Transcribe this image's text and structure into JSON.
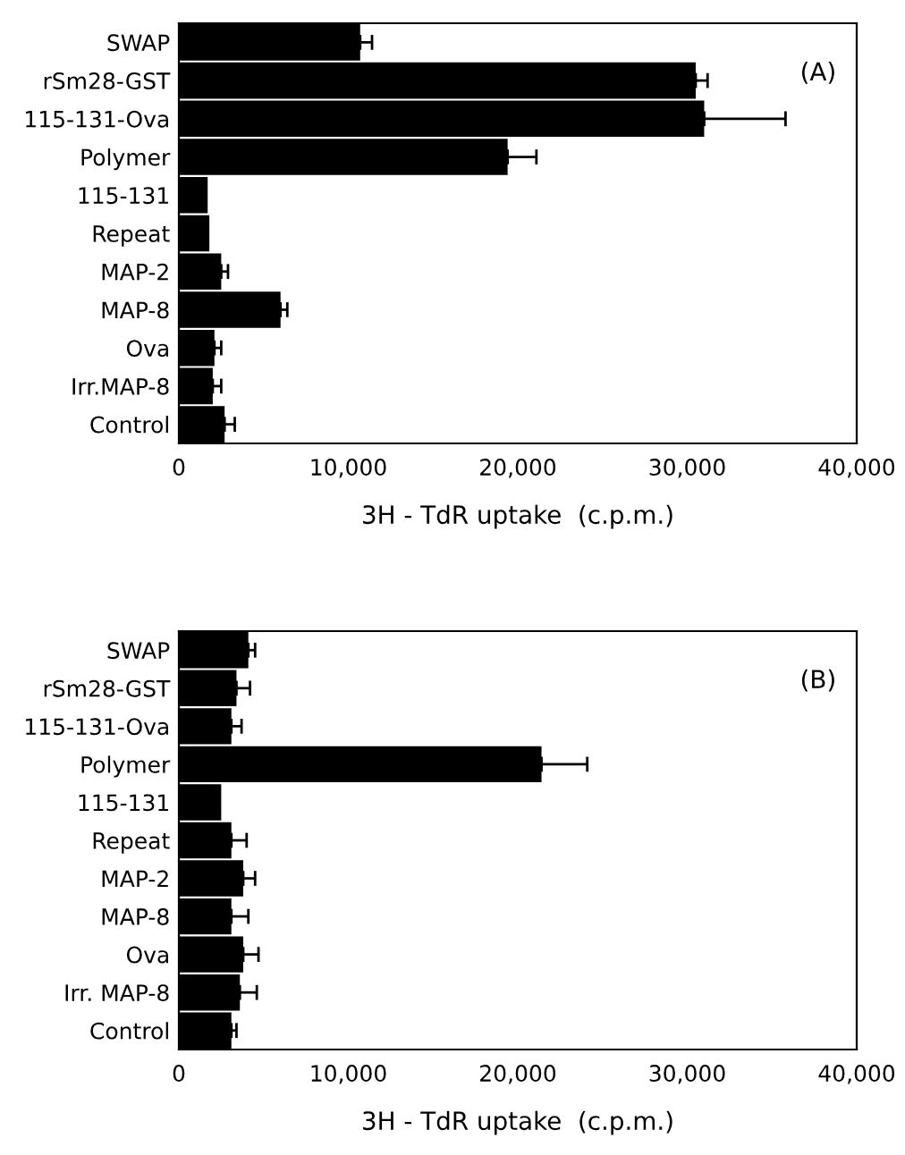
{
  "chart_data": [
    {
      "type": "bar",
      "orientation": "horizontal",
      "categories": [
        "SWAP",
        "rSm28-GST",
        "115-131-Ova",
        "Polymer",
        "115-131",
        "Repeat",
        "MAP-2",
        "MAP-8",
        "Ova",
        "Irr.MAP-8",
        "Control"
      ],
      "values": [
        10700,
        30500,
        31000,
        19400,
        1700,
        1800,
        2500,
        6000,
        2100,
        2000,
        2700
      ],
      "errors": [
        [
          10700,
          11400
        ],
        [
          30500,
          31200
        ],
        [
          31000,
          35800
        ],
        [
          19400,
          21100
        ],
        null,
        null,
        [
          2500,
          2900
        ],
        [
          6000,
          6400
        ],
        [
          2100,
          2500
        ],
        [
          2000,
          2500
        ],
        [
          2700,
          3300
        ]
      ],
      "color": "#000000",
      "xlim": [
        0,
        40000
      ],
      "xticks": [
        0,
        {
          "value": 10000,
          "label": "10,000"
        },
        {
          "value": 20000,
          "label": "20,000"
        },
        {
          "value": 30000,
          "label": "30,000"
        },
        {
          "value": 40000,
          "label": "40,000"
        }
      ],
      "xlabel": "3H - TdR uptake  (c.p.m.)",
      "annotations": [
        "(A)"
      ],
      "grid": false,
      "legend": false
    },
    {
      "type": "bar",
      "orientation": "horizontal",
      "categories": [
        "SWAP",
        "rSm28-GST",
        "115-131-Ova",
        "Polymer",
        "115-131",
        "Repeat",
        "MAP-2",
        "MAP-8",
        "Ova",
        "Irr. MAP-8",
        "Control"
      ],
      "values": [
        4100,
        3400,
        3100,
        21400,
        2500,
        3100,
        3800,
        3100,
        3800,
        3600,
        3100
      ],
      "errors": [
        [
          4100,
          4500
        ],
        [
          3400,
          4200
        ],
        [
          3100,
          3700
        ],
        [
          21400,
          24100
        ],
        null,
        [
          3100,
          4000
        ],
        [
          3800,
          4500
        ],
        [
          3100,
          4100
        ],
        [
          3800,
          4700
        ],
        [
          3600,
          4600
        ],
        [
          3100,
          3400
        ]
      ],
      "color": "#000000",
      "xlim": [
        0,
        40000
      ],
      "xticks": [
        0,
        {
          "value": 10000,
          "label": "10,000"
        },
        {
          "value": 20000,
          "label": "20,000"
        },
        {
          "value": 30000,
          "label": "30,000"
        },
        {
          "value": 40000,
          "label": "40,000"
        }
      ],
      "xlabel": "3H - TdR uptake  (c.p.m.)",
      "annotations": [
        "(B)"
      ],
      "grid": false,
      "legend": false
    }
  ]
}
